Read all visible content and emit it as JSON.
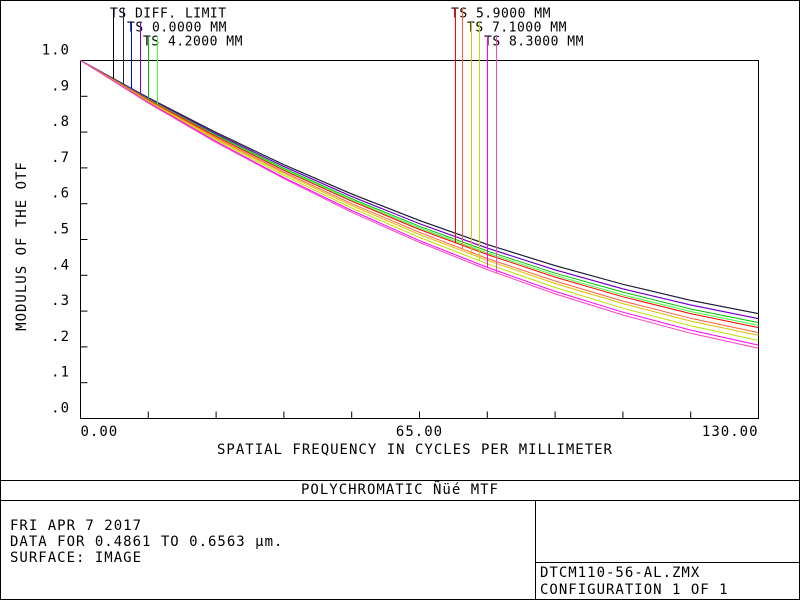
{
  "chart_data": {
    "type": "line",
    "title": "POLYCHROMATIC Ñüé  MTF",
    "x_label": "SPATIAL FREQUENCY IN CYCLES PER MILLIMETER",
    "y_label": "MODULUS OF THE OTF",
    "info": [
      "FRI APR 7 2017",
      "DATA FOR 0.4861 TO 0.6563 µm.",
      "SURFACE: IMAGE"
    ],
    "file": [
      "DTCM110-56-AL.ZMX",
      "CONFIGURATION 1 OF 1"
    ],
    "x": [
      0,
      13,
      26,
      39,
      52,
      65,
      78,
      91,
      104,
      117,
      130
    ],
    "xlim": [
      0,
      130
    ],
    "ylim": [
      0,
      1
    ],
    "xticks": [
      {
        "value": 0,
        "label": "0.00"
      },
      {
        "value": 65,
        "label": "65.00"
      },
      {
        "value": 130,
        "label": "130.00"
      }
    ],
    "x_minor_ticks": [
      13,
      26,
      39,
      52,
      78,
      91,
      104,
      117
    ],
    "yticks": [
      {
        "value": 0,
        "label": ".0"
      },
      {
        "value": 0.1,
        "label": ".1"
      },
      {
        "value": 0.2,
        "label": ".2"
      },
      {
        "value": 0.3,
        "label": ".3"
      },
      {
        "value": 0.4,
        "label": ".4"
      },
      {
        "value": 0.5,
        "label": ".5"
      },
      {
        "value": 0.6,
        "label": ".6"
      },
      {
        "value": 0.7,
        "label": ".7"
      },
      {
        "value": 0.8,
        "label": ".8"
      },
      {
        "value": 0.9,
        "label": ".9"
      },
      {
        "value": 1,
        "label": "1.0"
      }
    ],
    "series": [
      {
        "name": "TS DIFF. LIMIT",
        "colors": [
          "#000000",
          "#202040"
        ],
        "t_values": [
          1,
          0.896,
          0.799,
          0.709,
          0.627,
          0.553,
          0.486,
          0.427,
          0.375,
          0.33,
          0.293
        ],
        "s_values": [
          1,
          0.896,
          0.799,
          0.709,
          0.627,
          0.553,
          0.486,
          0.427,
          0.375,
          0.33,
          0.293
        ]
      },
      {
        "name": "TS 0.0000 MM",
        "colors": [
          "#0000ff",
          "#8000c0"
        ],
        "t_values": [
          1,
          0.894,
          0.795,
          0.704,
          0.62,
          0.544,
          0.476,
          0.415,
          0.362,
          0.317,
          0.279
        ],
        "s_values": [
          1,
          0.894,
          0.795,
          0.704,
          0.62,
          0.544,
          0.476,
          0.415,
          0.362,
          0.317,
          0.279
        ]
      },
      {
        "name": "TS 4.2000 MM",
        "colors": [
          "#00c000",
          "#40ff40"
        ],
        "t_values": [
          1,
          0.892,
          0.792,
          0.699,
          0.614,
          0.537,
          0.468,
          0.406,
          0.353,
          0.306,
          0.268
        ],
        "s_values": [
          1,
          0.891,
          0.789,
          0.696,
          0.61,
          0.532,
          0.462,
          0.4,
          0.345,
          0.299,
          0.26
        ]
      },
      {
        "name": "TS 5.9000 MM",
        "colors": [
          "#ff0000",
          "#ff6040"
        ],
        "t_values": [
          1,
          0.89,
          0.788,
          0.693,
          0.607,
          0.528,
          0.458,
          0.395,
          0.34,
          0.293,
          0.254
        ],
        "s_values": [
          1,
          0.888,
          0.784,
          0.688,
          0.6,
          0.52,
          0.447,
          0.384,
          0.328,
          0.28,
          0.24
        ]
      },
      {
        "name": "TS 7.1000 MM",
        "colors": [
          "#e0c000",
          "#c0e000"
        ],
        "t_values": [
          1,
          0.887,
          0.781,
          0.684,
          0.595,
          0.514,
          0.442,
          0.377,
          0.321,
          0.272,
          0.232
        ],
        "s_values": [
          1,
          0.885,
          0.778,
          0.679,
          0.588,
          0.506,
          0.432,
          0.366,
          0.308,
          0.259,
          0.218
        ]
      },
      {
        "name": "TS 8.3000 MM",
        "colors": [
          "#ff00ff",
          "#ff40c0"
        ],
        "t_values": [
          1,
          0.883,
          0.774,
          0.673,
          0.581,
          0.497,
          0.422,
          0.355,
          0.297,
          0.247,
          0.205
        ],
        "s_values": [
          1,
          0.881,
          0.771,
          0.67,
          0.576,
          0.492,
          0.416,
          0.348,
          0.289,
          0.238,
          0.196
        ]
      }
    ]
  }
}
